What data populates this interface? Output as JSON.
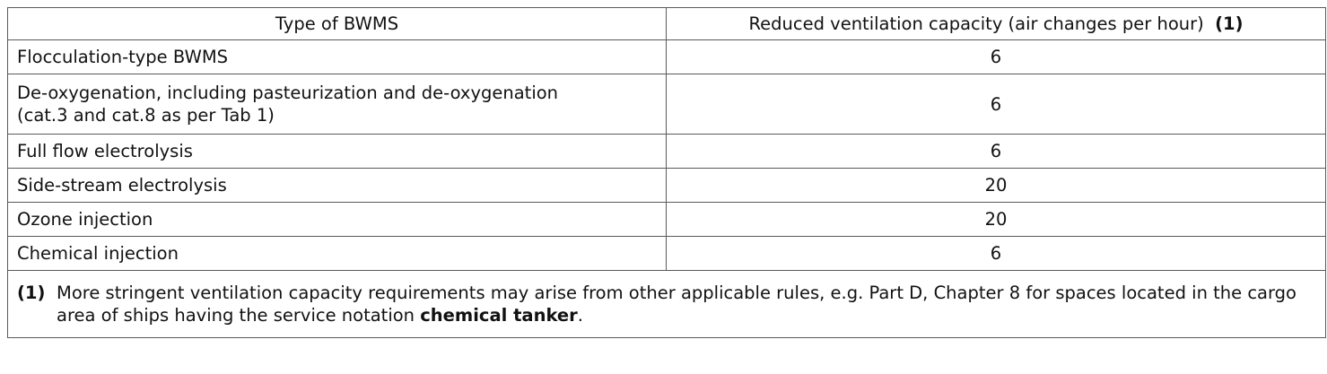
{
  "table": {
    "header": {
      "col1": "Type of BWMS",
      "col2": "Reduced ventilation capacity (air changes per hour)",
      "col2_note_ref": "(1)"
    },
    "rows": [
      {
        "type": "Flocculation-type BWMS",
        "value": "6"
      },
      {
        "type": "De-oxygenation, including pasteurization and de-oxygenation",
        "type_line2": "(cat.3 and cat.8 as per Tab 1)",
        "value": "6"
      },
      {
        "type": "Full flow electrolysis",
        "value": "6"
      },
      {
        "type": "Side-stream electrolysis",
        "value": "20"
      },
      {
        "type": "Ozone injection",
        "value": "20"
      },
      {
        "type": "Chemical injection",
        "value": "6"
      }
    ],
    "footnote": {
      "mark": "(1)",
      "text_before": "More stringent ventilation capacity requirements may arise from other applicable rules, e.g.  Part D, Chapter 8 for spaces located in the cargo area of ships having the service notation ",
      "bold_term": "chemical tanker",
      "text_after": "."
    }
  }
}
